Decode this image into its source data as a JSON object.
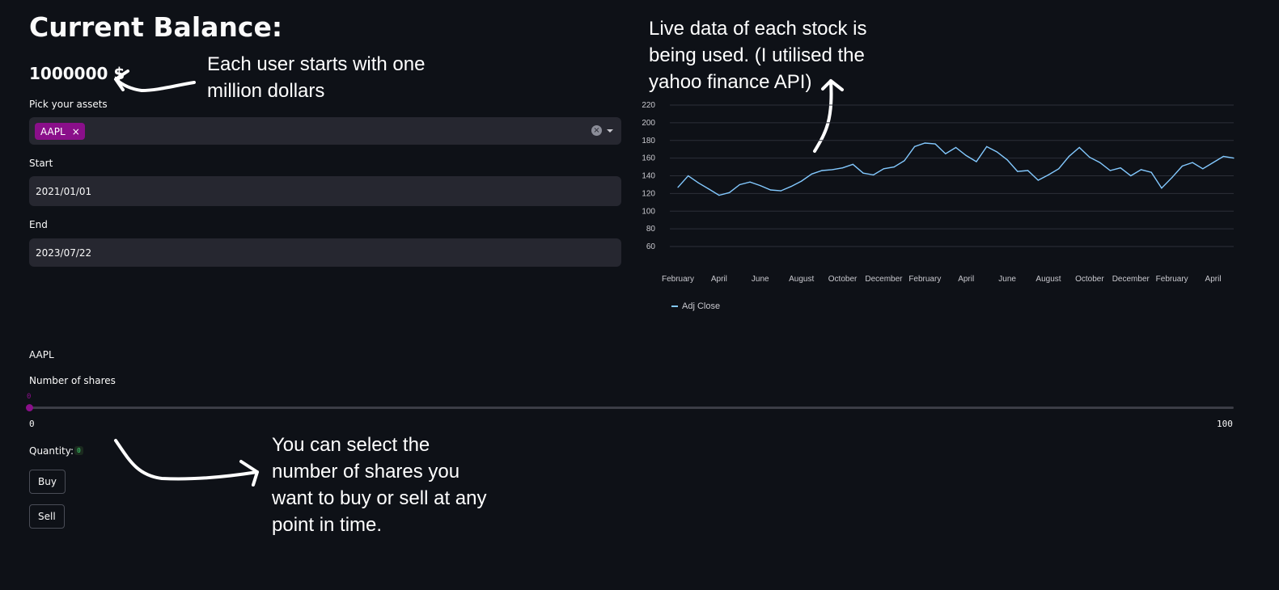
{
  "header": {
    "title": "Current Balance:"
  },
  "balance": {
    "value": "1000000 $"
  },
  "assets": {
    "label": "Pick your assets",
    "selected": [
      "AAPL"
    ],
    "chip_remove": "×",
    "clear_icon": "×"
  },
  "start": {
    "label": "Start",
    "value": "2021/01/01"
  },
  "end": {
    "label": "End",
    "value": "2023/07/22"
  },
  "stock": {
    "title": "AAPL"
  },
  "shares": {
    "label": "Number of shares",
    "value": "0",
    "min": "0",
    "max": "100",
    "value_level": 0
  },
  "quantity": {
    "label": "Quantity:",
    "value": "0"
  },
  "buttons": {
    "buy": "Buy",
    "sell": "Sell"
  },
  "annotations": {
    "balance_note": [
      "Each user starts with one",
      "million dollars"
    ],
    "chart_note": [
      "Live data of each stock is",
      "being used. (I utilised the",
      "yahoo finance API)"
    ],
    "shares_note": [
      "You can select the",
      "number of shares you",
      "want to buy or sell at any",
      "point in time."
    ]
  },
  "colors": {
    "accent": "#8a0f8a",
    "line": "#83c9ff",
    "background": "#0e1117",
    "field": "#262730"
  },
  "chart_data": {
    "type": "line",
    "x_ticks": [
      "February",
      "April",
      "June",
      "August",
      "October",
      "December",
      "February",
      "April",
      "June",
      "August",
      "October",
      "December",
      "February",
      "April"
    ],
    "y_ticks": [
      60,
      80,
      100,
      120,
      140,
      160,
      180,
      200,
      220
    ],
    "ylim": [
      50,
      220
    ],
    "grid": true,
    "legend_position": "bottom-left",
    "series": [
      {
        "name": "Adj Close",
        "x": [
          0,
          0.25,
          0.5,
          0.75,
          1,
          1.25,
          1.5,
          1.75,
          2,
          2.25,
          2.5,
          2.75,
          3,
          3.25,
          3.5,
          3.75,
          4,
          4.25,
          4.5,
          4.75,
          5,
          5.25,
          5.5,
          5.75,
          6,
          6.25,
          6.5,
          6.75,
          7,
          7.25,
          7.5,
          7.75,
          8,
          8.25,
          8.5,
          8.75,
          9,
          9.25,
          9.5,
          9.75,
          10,
          10.25,
          10.5,
          10.75,
          11,
          11.25,
          11.5,
          11.75,
          12,
          12.25,
          12.5,
          12.75,
          13,
          13.25,
          13.5
        ],
        "values": [
          127,
          140,
          132,
          125,
          118,
          121,
          130,
          133,
          129,
          124,
          123,
          128,
          134,
          142,
          146,
          147,
          149,
          153,
          143,
          141,
          148,
          150,
          157,
          173,
          177,
          176,
          165,
          172,
          163,
          156,
          173,
          167,
          158,
          145,
          146,
          135,
          141,
          148,
          162,
          172,
          161,
          155,
          146,
          149,
          140,
          147,
          144,
          126,
          138,
          151,
          155,
          148,
          155,
          162,
          160
        ]
      }
    ]
  }
}
